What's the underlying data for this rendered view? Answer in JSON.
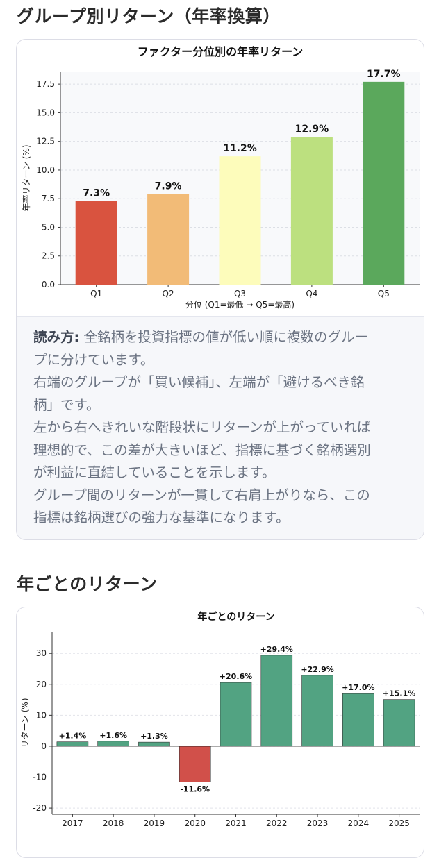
{
  "section1": {
    "title": "グループ別リターン（年率換算）"
  },
  "chart1": {
    "type": "bar",
    "title": "ファクター分位別の年率リターン",
    "xlabel": "分位 (Q1=最低 → Q5=最高)",
    "ylabel": "年率リターン (%)",
    "ylim": [
      0,
      18.6
    ],
    "yticks": [
      "0.0",
      "2.5",
      "5.0",
      "7.5",
      "10.0",
      "12.5",
      "15.0",
      "17.5"
    ],
    "categories": [
      "Q1",
      "Q2",
      "Q3",
      "Q4",
      "Q5"
    ],
    "values": [
      7.3,
      7.9,
      11.2,
      12.9,
      17.7
    ],
    "data_labels": [
      "7.3%",
      "7.9%",
      "11.2%",
      "12.9%",
      "17.7%"
    ],
    "colors": [
      "#d9533f",
      "#f2bb77",
      "#fdfcbb",
      "#bce07f",
      "#5ba85c"
    ],
    "grid": true
  },
  "note": {
    "lead": "読み方:",
    "lines": [
      " 全銘柄を投資指標の値が低い順に複数のグルー",
      "プに分けています。",
      "右端のグループが「買い候補」、左端が「避けるべき銘",
      "柄」です。",
      "左から右へきれいな階段状にリターンが上がっていれば",
      "理想的で、この差が大きいほど、指標に基づく銘柄選別",
      "が利益に直結していることを示します。",
      "グループ間のリターンが一貫して右肩上がりなら、この",
      "指標は銘柄選びの強力な基準になります。"
    ]
  },
  "section2": {
    "title": "年ごとのリターン"
  },
  "chart2": {
    "type": "bar",
    "title": "年ごとのリターン",
    "ylabel": "リターン (%)",
    "ylim": [
      -22,
      37
    ],
    "yticks": [
      "-20",
      "-10",
      "0",
      "10",
      "20",
      "30"
    ],
    "categories": [
      "2017",
      "2018",
      "2019",
      "2020",
      "2021",
      "2022",
      "2023",
      "2024",
      "2025"
    ],
    "values": [
      1.4,
      1.6,
      1.3,
      -11.6,
      20.6,
      29.4,
      22.9,
      17.0,
      15.1
    ],
    "data_labels": [
      "+1.4%",
      "+1.6%",
      "+1.3%",
      "-11.6%",
      "+20.6%",
      "+29.4%",
      "+22.9%",
      "+17.0%",
      "+15.1%"
    ],
    "positive_color": "#52a382",
    "negative_color": "#d1504a",
    "grid": true
  }
}
